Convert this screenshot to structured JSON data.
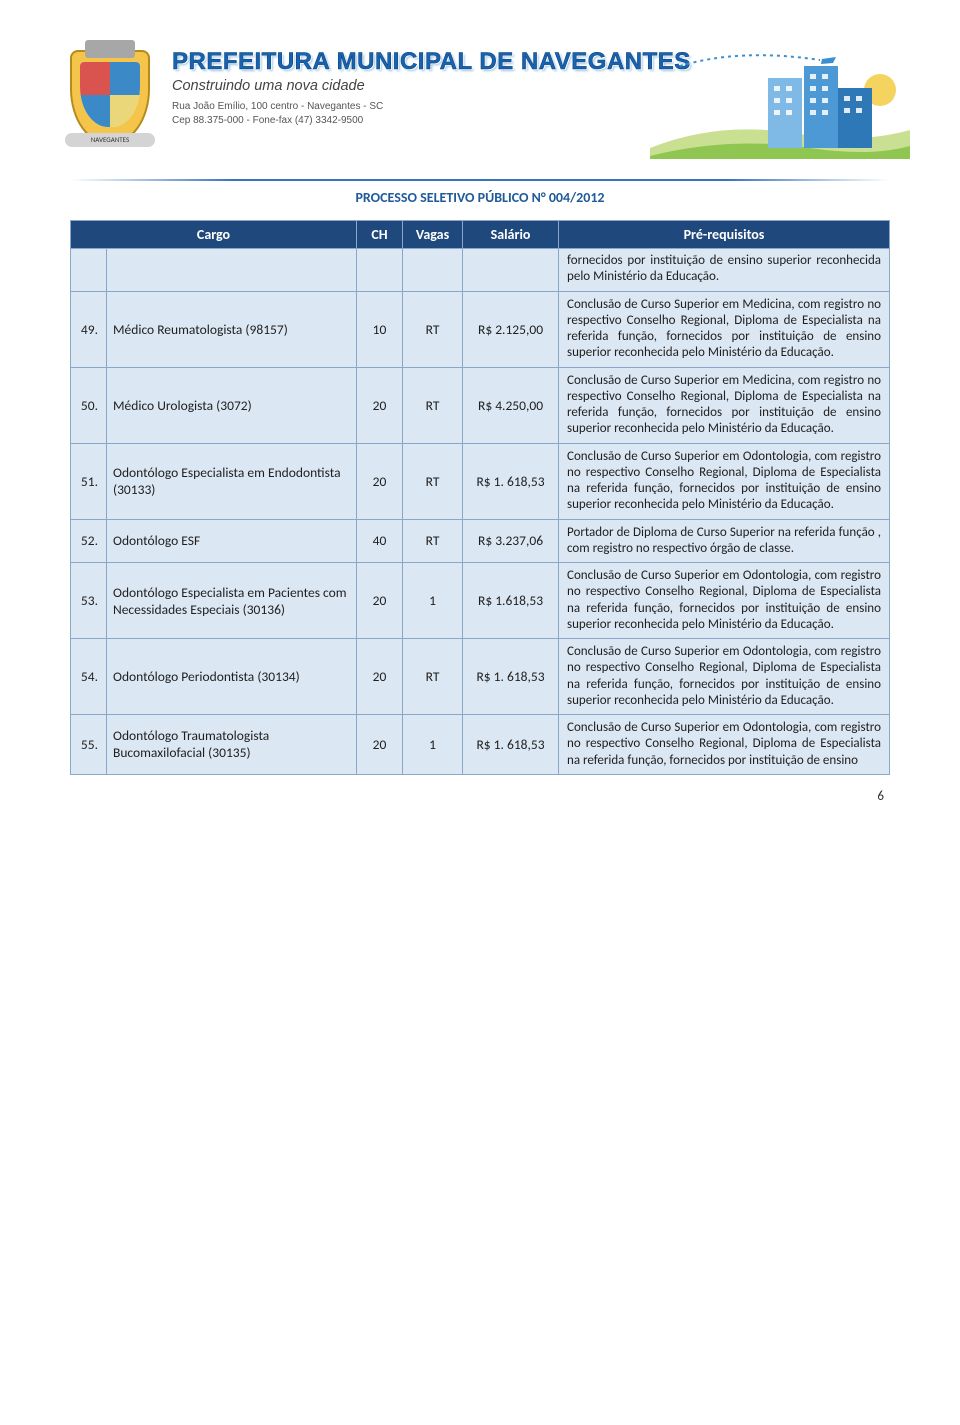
{
  "letterhead": {
    "title": "PREFEITURA MUNICIPAL DE NAVEGANTES",
    "subtitle": "Construindo uma nova cidade",
    "addr1": "Rua João Emílio, 100 centro - Navegantes - SC",
    "addr2": "Cep 88.375-000 - Fone-fax (47) 3342-9500",
    "banner": "NAVEGANTES"
  },
  "process_title": "PROCESSO SELETIVO PÚBLICO N° 004/2012",
  "table": {
    "headers": {
      "cargo": "Cargo",
      "ch": "CH",
      "vagas": "Vagas",
      "salario": "Salário",
      "prereq": "Pré-requisitos"
    },
    "carry_req": "fornecidos por instituição de ensino superior reconhecida pelo Ministério da Educação.",
    "rows": [
      {
        "idx": "49.",
        "cargo": "Médico Reumatologista (98157)",
        "ch": "10",
        "vagas": "RT",
        "sal": "R$ 2.125,00",
        "req": "Conclusão de Curso Superior em Medicina, com registro no respectivo Conselho Regional, Diploma de Especialista na referida função, fornecidos por instituição de ensino superior reconhecida pelo Ministério da Educação."
      },
      {
        "idx": "50.",
        "cargo": "Médico Urologista (3072)",
        "ch": "20",
        "vagas": "RT",
        "sal": "R$ 4.250,00",
        "req": "Conclusão de Curso Superior em Medicina, com registro no respectivo Conselho Regional, Diploma de Especialista na referida função, fornecidos por instituição de ensino superior reconhecida pelo Ministério da Educação."
      },
      {
        "idx": "51.",
        "cargo": "Odontólogo Especialista em Endodontista (30133)",
        "ch": "20",
        "vagas": "RT",
        "sal": "R$ 1. 618,53",
        "req": "Conclusão de Curso Superior em Odontologia, com registro no respectivo Conselho Regional, Diploma de Especialista na referida função, fornecidos por instituição de ensino superior reconhecida pelo Ministério da Educação."
      },
      {
        "idx": "52.",
        "cargo": "Odontólogo ESF",
        "ch": "40",
        "vagas": "RT",
        "sal": "R$ 3.237,06",
        "req": "Portador de Diploma de Curso Superior na referida função , com registro no respectivo órgão de classe."
      },
      {
        "idx": "53.",
        "cargo": "Odontólogo Especialista em Pacientes com Necessidades Especiais (30136)",
        "ch": "20",
        "vagas": "1",
        "sal": "R$ 1.618,53",
        "req": "Conclusão de Curso Superior em Odontologia, com registro no respectivo Conselho Regional, Diploma de Especialista na referida função, fornecidos por instituição de ensino superior reconhecida pelo Ministério da Educação."
      },
      {
        "idx": "54.",
        "cargo": "Odontólogo Periodontista (30134)",
        "ch": "20",
        "vagas": "RT",
        "sal": "R$ 1. 618,53",
        "req": "Conclusão de Curso Superior em Odontologia, com registro no respectivo Conselho Regional, Diploma de Especialista na referida função, fornecidos por instituição de ensino superior reconhecida pelo Ministério da Educação."
      },
      {
        "idx": "55.",
        "cargo": "Odontólogo Traumatologista Bucomaxilofacial (30135)",
        "ch": "20",
        "vagas": "1",
        "sal": "R$ 1. 618,53",
        "req": "Conclusão de Curso Superior em Odontologia, com registro no respectivo Conselho Regional, Diploma de Especialista na referida função, fornecidos por instituição de ensino"
      }
    ]
  },
  "page_number": "6",
  "colors": {
    "header_bg": "#1f487c",
    "row_bg": "#dbe7f3",
    "border": "#8aa6c9",
    "title": "#205a9a",
    "rule": "#3873bb"
  },
  "scene": {
    "sky": "#ffffff",
    "building1": "#7fb9e6",
    "building2": "#4c99d6",
    "building3": "#2f78b8",
    "hill_front": "#8ec651",
    "hill_back": "#c9df92",
    "sun": "#f4d35e",
    "plane": "#3a8fd0"
  }
}
